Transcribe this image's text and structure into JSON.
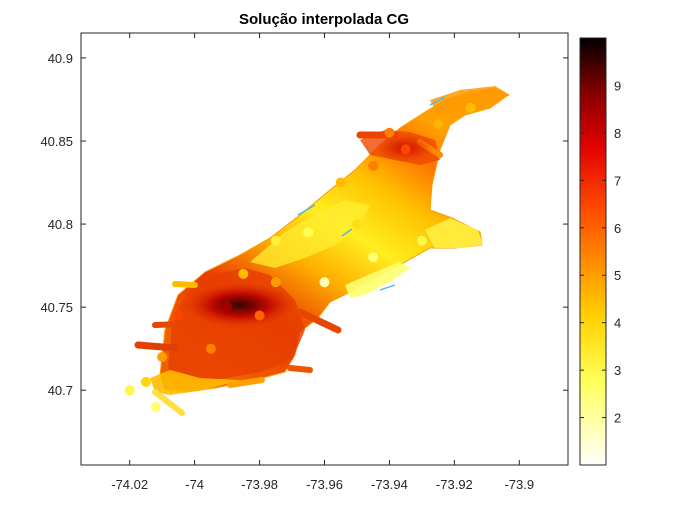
{
  "chart_data": {
    "type": "scatter",
    "title": "Solução interpolada CG",
    "xlabel": "",
    "ylabel": "",
    "xlim": [
      -74.035,
      -73.885
    ],
    "ylim": [
      40.655,
      40.915
    ],
    "x_ticks": [
      -74.02,
      -74.0,
      -73.98,
      -73.96,
      -73.94,
      -73.92,
      -73.9
    ],
    "x_tick_labels": [
      "-74.02",
      "-74",
      "-73.98",
      "-73.96",
      "-73.94",
      "-73.92",
      "-73.9"
    ],
    "y_ticks": [
      40.7,
      40.75,
      40.8,
      40.85,
      40.9
    ],
    "y_tick_labels": [
      "40.7",
      "40.75",
      "40.8",
      "40.85",
      "40.9"
    ],
    "grid": false,
    "colormap": "hot (reversed)",
    "colorbar": {
      "range": [
        1,
        10
      ],
      "ticks": [
        2,
        3,
        4,
        5,
        6,
        7,
        8,
        9
      ],
      "tick_labels": [
        "2",
        "3",
        "4",
        "5",
        "6",
        "7",
        "8",
        "9"
      ]
    },
    "outline_color": "#4db8e8",
    "hotspots": [
      {
        "x": -73.989,
        "y": 40.751,
        "value": 9.3
      },
      {
        "x": -73.939,
        "y": 40.846,
        "value": 6.8
      }
    ],
    "points": [
      {
        "x": -74.005,
        "y": 40.745,
        "value": 6.5
      },
      {
        "x": -73.99,
        "y": 40.75,
        "value": 8.5
      },
      {
        "x": -73.98,
        "y": 40.745,
        "value": 6.0
      },
      {
        "x": -74.01,
        "y": 40.72,
        "value": 5.0
      },
      {
        "x": -73.995,
        "y": 40.725,
        "value": 5.5
      },
      {
        "x": -74.015,
        "y": 40.705,
        "value": 4.0
      },
      {
        "x": -74.02,
        "y": 40.7,
        "value": 3.0
      },
      {
        "x": -74.012,
        "y": 40.69,
        "value": 2.5
      },
      {
        "x": -73.975,
        "y": 40.765,
        "value": 5.0
      },
      {
        "x": -73.985,
        "y": 40.77,
        "value": 4.5
      },
      {
        "x": -73.975,
        "y": 40.79,
        "value": 3.2
      },
      {
        "x": -73.965,
        "y": 40.795,
        "value": 2.8
      },
      {
        "x": -73.958,
        "y": 40.805,
        "value": 3.4
      },
      {
        "x": -73.95,
        "y": 40.8,
        "value": 3.8
      },
      {
        "x": -73.955,
        "y": 40.825,
        "value": 4.5
      },
      {
        "x": -73.945,
        "y": 40.835,
        "value": 5.5
      },
      {
        "x": -73.935,
        "y": 40.845,
        "value": 6.5
      },
      {
        "x": -73.94,
        "y": 40.855,
        "value": 5.5
      },
      {
        "x": -73.925,
        "y": 40.86,
        "value": 4.6
      },
      {
        "x": -73.915,
        "y": 40.87,
        "value": 4.5
      },
      {
        "x": -73.93,
        "y": 40.79,
        "value": 3.0
      },
      {
        "x": -73.945,
        "y": 40.78,
        "value": 2.5
      },
      {
        "x": -73.96,
        "y": 40.765,
        "value": 1.8
      }
    ]
  }
}
